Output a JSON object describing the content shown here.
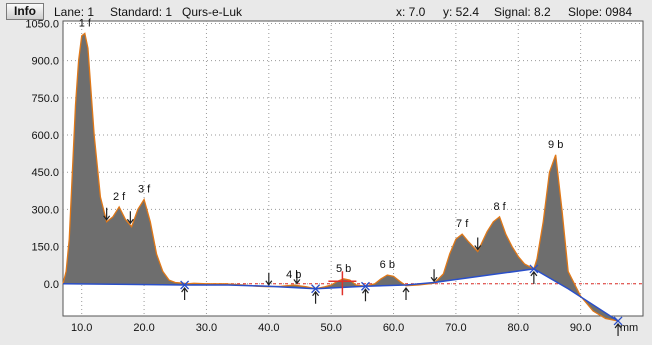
{
  "header": {
    "info_button": "Info",
    "lane": "Lane: 1",
    "standard": "Standard: 1",
    "name": "Qurs-e-Luk",
    "x_readout": "x: 7.0",
    "y_readout": "y: 52.4",
    "signal_readout": "Signal: 8.2",
    "slope_readout": "Slope: 0984"
  },
  "colors": {
    "fill": "#6e6e6e",
    "signal_line": "#e07818",
    "baseline": "#2a4fc9",
    "zero_line": "#e0312a",
    "background": "#e9e9e9",
    "plot_bg": "#ffffff"
  },
  "chart_data": {
    "type": "area",
    "xlabel": "mm",
    "ylabel": "",
    "xlim": [
      7,
      100
    ],
    "ylim": [
      -130,
      1060
    ],
    "x_ticks": [
      10,
      20,
      30,
      40,
      50,
      60,
      70,
      80,
      90
    ],
    "x_tick_labels": [
      "10.0",
      "20.0",
      "30.0",
      "40.0",
      "50.0",
      "60.0",
      "70.0",
      "80.0",
      "90.0"
    ],
    "y_ticks": [
      0,
      150,
      300,
      450,
      600,
      750,
      900,
      1050
    ],
    "y_tick_labels": [
      "0.0",
      "150.0",
      "300.0",
      "450.0",
      "600.0",
      "750.0",
      "900.0",
      "1050.0"
    ],
    "grid": true,
    "series": [
      {
        "x": [
          7,
          7.5,
          8,
          8.5,
          9,
          9.5,
          10,
          10.5,
          11,
          12,
          13,
          14,
          15,
          16,
          17,
          18,
          19,
          20,
          21,
          22,
          23,
          24,
          25,
          26,
          27,
          28,
          30,
          33,
          36,
          38,
          40,
          42,
          44,
          46,
          47.5,
          49,
          50,
          51,
          52,
          53,
          54,
          55.5,
          57,
          58,
          59,
          60,
          61,
          62,
          64,
          66.5,
          68,
          69,
          70,
          71,
          72,
          73.5,
          75,
          76,
          77,
          78,
          79,
          80,
          81,
          82.5,
          83,
          84,
          85,
          86,
          87,
          88,
          90,
          92,
          94,
          96
        ],
        "values": [
          0,
          50,
          180,
          450,
          720,
          900,
          1000,
          1010,
          950,
          600,
          350,
          250,
          270,
          310,
          260,
          230,
          300,
          340,
          250,
          120,
          50,
          15,
          5,
          3,
          0,
          2,
          0,
          0,
          -5,
          -10,
          -12,
          -10,
          -5,
          -12,
          -20,
          -12,
          -5,
          10,
          20,
          15,
          -5,
          -10,
          0,
          20,
          35,
          30,
          10,
          -8,
          -5,
          2,
          40,
          120,
          180,
          200,
          170,
          130,
          210,
          250,
          270,
          200,
          150,
          110,
          80,
          60,
          100,
          250,
          450,
          520,
          300,
          50,
          -50,
          -110,
          -140,
          -150
        ]
      }
    ],
    "baseline": {
      "x": [
        7,
        26.5,
        30,
        33.5,
        40,
        47.5,
        55.5,
        62,
        66.5,
        82.5,
        88,
        96
      ],
      "values": [
        0,
        -5,
        -5,
        -5,
        -10,
        -20,
        -10,
        -5,
        5,
        60,
        -20,
        -150
      ]
    },
    "peaks": [
      {
        "label": "1 f",
        "x": 10.5,
        "y": 1010
      },
      {
        "label": "2 f",
        "x": 16,
        "y": 310
      },
      {
        "label": "3 f",
        "x": 20,
        "y": 340
      },
      {
        "label": "4 b",
        "x": 44,
        "y": -5
      },
      {
        "label": "5 b",
        "x": 52,
        "y": 20
      },
      {
        "label": "6 b",
        "x": 59,
        "y": 35
      },
      {
        "label": "7 f",
        "x": 71,
        "y": 200
      },
      {
        "label": "8 f",
        "x": 77,
        "y": 270
      },
      {
        "label": "9 b",
        "x": 86,
        "y": 520
      }
    ],
    "down_arrows_x": [
      14,
      17.8,
      40,
      44.5,
      66.5,
      73.5
    ],
    "up_arrows_x": [
      26.5,
      47.5,
      55.5,
      62,
      82.5,
      96
    ],
    "boundary_x": [
      26.5,
      47.5,
      55.5,
      82.5,
      96
    ]
  }
}
